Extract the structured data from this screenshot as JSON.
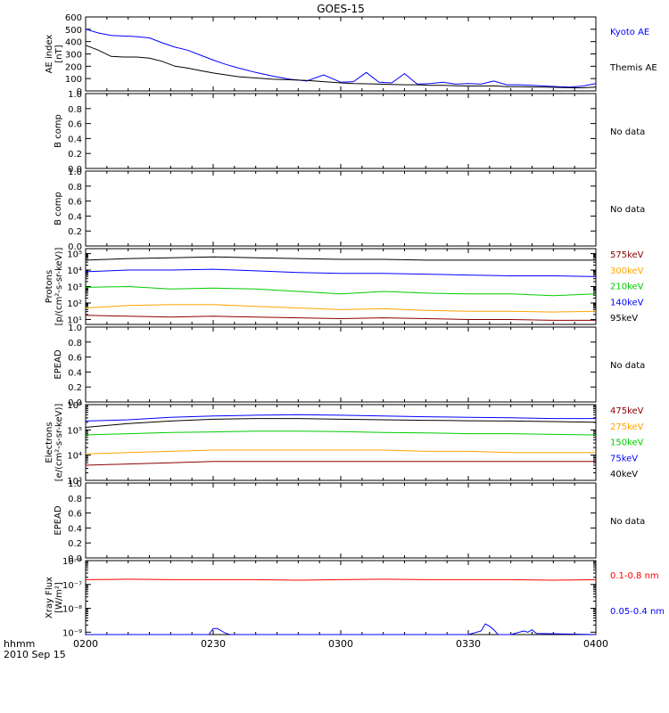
{
  "title": "GOES-15",
  "xaxis": {
    "label_line1": "hhmm",
    "label_line2": "2010 Sep 15",
    "ticks": [
      "0200",
      "0230",
      "0300",
      "0330",
      "0400"
    ],
    "range_minutes": [
      0,
      120
    ]
  },
  "chart_data": [
    {
      "id": "ae",
      "type": "line",
      "ylabel_lines": [
        "AE index",
        "[nT]"
      ],
      "ylim": [
        0,
        600
      ],
      "yticks": [
        "0",
        "100",
        "200",
        "300",
        "400",
        "500",
        "600"
      ],
      "series": [
        {
          "name": "Kyoto AE",
          "color": "#0000ff",
          "x": [
            0,
            3,
            6,
            9,
            12,
            15,
            18,
            21,
            24,
            27,
            30,
            33,
            36,
            40,
            44,
            48,
            52,
            56,
            60,
            63,
            66,
            69,
            72,
            75,
            78,
            81,
            84,
            87,
            90,
            93,
            96,
            99,
            102,
            105,
            108,
            111,
            114,
            117,
            120
          ],
          "y": [
            500,
            470,
            450,
            445,
            440,
            430,
            390,
            355,
            330,
            290,
            250,
            215,
            185,
            150,
            120,
            95,
            80,
            130,
            70,
            75,
            150,
            70,
            65,
            140,
            55,
            60,
            70,
            55,
            60,
            55,
            80,
            50,
            50,
            45,
            40,
            35,
            30,
            40,
            60
          ]
        },
        {
          "name": "Themis AE",
          "color": "#000000",
          "x": [
            0,
            3,
            6,
            9,
            12,
            15,
            18,
            21,
            24,
            27,
            30,
            33,
            36,
            40,
            44,
            48,
            52,
            56,
            60,
            63,
            66,
            69,
            72,
            75,
            78,
            81,
            84,
            87,
            90,
            93,
            96,
            99,
            102,
            105,
            108,
            111,
            114,
            117,
            120
          ],
          "y": [
            370,
            330,
            280,
            275,
            275,
            265,
            240,
            200,
            185,
            165,
            145,
            130,
            115,
            105,
            95,
            90,
            85,
            75,
            65,
            60,
            58,
            55,
            52,
            50,
            50,
            45,
            45,
            42,
            40,
            40,
            42,
            35,
            35,
            32,
            30,
            28,
            25,
            25,
            30
          ]
        }
      ]
    },
    {
      "id": "bcomp1",
      "type": "line",
      "ylabel_lines": [
        "B comp"
      ],
      "ylim": [
        0,
        1
      ],
      "yticks": [
        "0.0",
        "0.2",
        "0.4",
        "0.6",
        "0.8",
        "1.0"
      ],
      "status": "No data",
      "series": []
    },
    {
      "id": "bcomp2",
      "type": "line",
      "ylabel_lines": [
        "B comp"
      ],
      "ylim": [
        0,
        1
      ],
      "yticks": [
        "0.0",
        "0.2",
        "0.4",
        "0.6",
        "0.8",
        "1.0"
      ],
      "status": "No data",
      "series": []
    },
    {
      "id": "protons",
      "type": "line",
      "log": true,
      "ylabel_lines": [
        "Protons",
        "[p/(cm²-s-sr-keV)]"
      ],
      "ylim_exp": [
        0.7,
        5.3
      ],
      "ytick_exps": [
        1,
        2,
        3,
        4,
        5
      ],
      "series": [
        {
          "name": "575keV",
          "color": "#8b0000",
          "x": [
            0,
            10,
            20,
            30,
            40,
            50,
            60,
            70,
            80,
            90,
            100,
            110,
            120
          ],
          "y": [
            1.25,
            1.2,
            1.15,
            1.2,
            1.15,
            1.1,
            1.05,
            1.1,
            1.05,
            1.0,
            1.0,
            0.95,
            0.95
          ]
        },
        {
          "name": "300keV",
          "color": "#ffa500",
          "x": [
            0,
            10,
            20,
            30,
            40,
            50,
            60,
            70,
            80,
            90,
            100,
            110,
            120
          ],
          "y": [
            1.7,
            1.85,
            1.9,
            1.9,
            1.8,
            1.7,
            1.6,
            1.65,
            1.55,
            1.5,
            1.5,
            1.45,
            1.5
          ]
        },
        {
          "name": "210keV",
          "color": "#00cc00",
          "x": [
            0,
            10,
            20,
            30,
            40,
            50,
            60,
            70,
            80,
            90,
            100,
            110,
            120
          ],
          "y": [
            2.95,
            3.0,
            2.85,
            2.9,
            2.85,
            2.7,
            2.55,
            2.7,
            2.6,
            2.55,
            2.55,
            2.45,
            2.55
          ]
        },
        {
          "name": "140keV",
          "color": "#0000ff",
          "x": [
            0,
            10,
            20,
            30,
            40,
            50,
            60,
            70,
            80,
            90,
            100,
            110,
            120
          ],
          "y": [
            3.9,
            4.0,
            4.0,
            4.05,
            3.95,
            3.85,
            3.8,
            3.8,
            3.75,
            3.7,
            3.65,
            3.65,
            3.6
          ]
        },
        {
          "name": "95keV",
          "color": "#000000",
          "x": [
            0,
            10,
            20,
            30,
            40,
            50,
            60,
            70,
            80,
            90,
            100,
            110,
            120
          ],
          "y": [
            4.6,
            4.7,
            4.75,
            4.8,
            4.75,
            4.7,
            4.65,
            4.65,
            4.6,
            4.6,
            4.6,
            4.6,
            4.6
          ]
        }
      ]
    },
    {
      "id": "epead1",
      "type": "line",
      "ylabel_lines": [
        "EPEAD"
      ],
      "ylim": [
        0,
        1
      ],
      "yticks": [
        "0.0",
        "0.2",
        "0.4",
        "0.6",
        "0.8",
        "1.0"
      ],
      "status": "No data",
      "series": []
    },
    {
      "id": "electrons",
      "type": "line",
      "log": true,
      "ylabel_lines": [
        "Electrons",
        "[e/(cm²-s-sr-keV)]"
      ],
      "ylim_exp": [
        3,
        6
      ],
      "ytick_exps": [
        3,
        4,
        5,
        6
      ],
      "series": [
        {
          "name": "475keV",
          "color": "#8b0000",
          "x": [
            0,
            10,
            20,
            30,
            40,
            50,
            60,
            70,
            80,
            90,
            100,
            110,
            120
          ],
          "y": [
            3.6,
            3.65,
            3.7,
            3.75,
            3.75,
            3.75,
            3.75,
            3.75,
            3.75,
            3.75,
            3.75,
            3.75,
            3.75
          ]
        },
        {
          "name": "275keV",
          "color": "#ffa500",
          "x": [
            0,
            10,
            20,
            30,
            40,
            50,
            60,
            70,
            80,
            90,
            100,
            110,
            120
          ],
          "y": [
            4.05,
            4.1,
            4.15,
            4.2,
            4.2,
            4.2,
            4.2,
            4.2,
            4.15,
            4.15,
            4.1,
            4.1,
            4.1
          ]
        },
        {
          "name": "150keV",
          "color": "#00cc00",
          "x": [
            0,
            10,
            20,
            30,
            40,
            50,
            60,
            70,
            80,
            90,
            100,
            110,
            120
          ],
          "y": [
            4.8,
            4.85,
            4.9,
            4.92,
            4.95,
            4.95,
            4.93,
            4.9,
            4.88,
            4.85,
            4.85,
            4.82,
            4.8
          ]
        },
        {
          "name": "75keV",
          "color": "#0000ff",
          "x": [
            0,
            10,
            20,
            30,
            40,
            50,
            60,
            70,
            80,
            90,
            100,
            110,
            120
          ],
          "y": [
            5.35,
            5.4,
            5.5,
            5.55,
            5.58,
            5.6,
            5.58,
            5.55,
            5.52,
            5.5,
            5.48,
            5.45,
            5.45
          ]
        },
        {
          "name": "40keV",
          "color": "#000000",
          "x": [
            0,
            10,
            20,
            30,
            40,
            50,
            60,
            70,
            80,
            90,
            100,
            110,
            120
          ],
          "y": [
            5.1,
            5.25,
            5.35,
            5.42,
            5.45,
            5.45,
            5.42,
            5.4,
            5.38,
            5.36,
            5.35,
            5.33,
            5.3
          ]
        }
      ]
    },
    {
      "id": "epead2",
      "type": "line",
      "ylabel_lines": [
        "EPEAD"
      ],
      "ylim": [
        0,
        1
      ],
      "yticks": [
        "0.0",
        "0.2",
        "0.4",
        "0.6",
        "0.8",
        "1.0"
      ],
      "status": "No data",
      "series": []
    },
    {
      "id": "xray",
      "type": "line",
      "log": true,
      "ylabel_lines": [
        "Xray Flux",
        "[W/m²]"
      ],
      "ylim_exp": [
        -9.1,
        -6
      ],
      "ytick_exps": [
        -9,
        -8,
        -7,
        -6
      ],
      "series": [
        {
          "name": "0.1-0.8 nm",
          "color": "#ff0000",
          "x": [
            0,
            10,
            20,
            30,
            40,
            50,
            60,
            70,
            80,
            90,
            100,
            110,
            120
          ],
          "y": [
            -6.8,
            -6.78,
            -6.8,
            -6.8,
            -6.8,
            -6.82,
            -6.8,
            -6.78,
            -6.8,
            -6.8,
            -6.8,
            -6.82,
            -6.8
          ]
        },
        {
          "name": "0.05-0.4 nm",
          "color": "#0000ff",
          "x": [
            0,
            29,
            30,
            31,
            32,
            33,
            34,
            90,
            93,
            94,
            95,
            96,
            97,
            100,
            103,
            104,
            105,
            106,
            120
          ],
          "y": [
            -9.1,
            -9.1,
            -8.85,
            -8.85,
            -8.95,
            -9.05,
            -9.1,
            -9.1,
            -8.95,
            -8.65,
            -8.75,
            -8.9,
            -9.1,
            -9.1,
            -8.95,
            -9.0,
            -8.9,
            -9.05,
            -9.1
          ]
        }
      ]
    }
  ]
}
